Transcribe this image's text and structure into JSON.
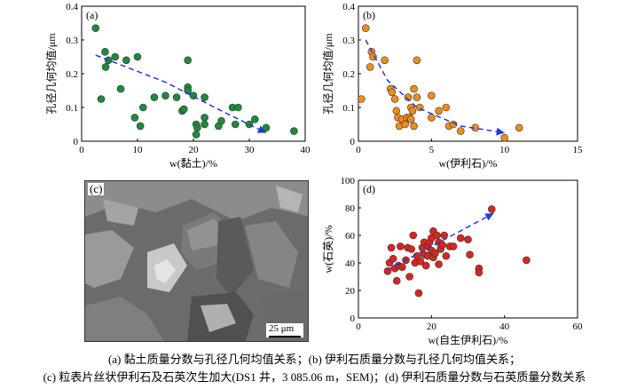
{
  "chart_data": [
    {
      "type": "scatter",
      "panel_label": "(a)",
      "xlabel": "w(黏土)/%",
      "ylabel": "孔径几何均值/μm",
      "xlim": [
        0,
        40
      ],
      "ylim": [
        0,
        0.4
      ],
      "xticks": [
        "0",
        "10",
        "20",
        "30",
        "40"
      ],
      "yticks": [
        "0",
        "0.1",
        "0.2",
        "0.3",
        "0.4"
      ],
      "marker_color": "#1f8a3a",
      "trend_color": "#1e3adb",
      "points": [
        [
          2.5,
          0.335
        ],
        [
          3.5,
          0.125
        ],
        [
          4.2,
          0.265
        ],
        [
          4.3,
          0.22
        ],
        [
          4.8,
          0.24
        ],
        [
          6,
          0.25
        ],
        [
          7,
          0.155
        ],
        [
          8,
          0.24
        ],
        [
          9.5,
          0.07
        ],
        [
          10,
          0.25
        ],
        [
          10.5,
          0.045
        ],
        [
          11,
          0.1
        ],
        [
          13,
          0.13
        ],
        [
          15,
          0.135
        ],
        [
          17,
          0.13
        ],
        [
          18,
          0.09
        ],
        [
          18.3,
          0.095
        ],
        [
          19,
          0.16
        ],
        [
          19,
          0.15
        ],
        [
          19,
          0.24
        ],
        [
          20,
          0.135
        ],
        [
          20.5,
          0.05
        ],
        [
          20.5,
          0.02
        ],
        [
          20.7,
          0.04
        ],
        [
          22,
          0.07
        ],
        [
          22,
          0.05
        ],
        [
          22,
          0.13
        ],
        [
          24.5,
          0.045
        ],
        [
          25,
          0.06
        ],
        [
          27,
          0.1
        ],
        [
          27.5,
          0.05
        ],
        [
          28,
          0.1
        ],
        [
          30,
          0.05
        ],
        [
          31,
          0.065
        ],
        [
          33,
          0.04
        ],
        [
          38,
          0.03
        ]
      ],
      "trend": [
        [
          2.5,
          0.255
        ],
        [
          15,
          0.175
        ],
        [
          25,
          0.09
        ],
        [
          33,
          0.025
        ]
      ]
    },
    {
      "type": "scatter",
      "panel_label": "(b)",
      "xlabel": "w(伊利石)/%",
      "ylabel": "孔径几何均值/μm",
      "xlim": [
        0,
        15
      ],
      "ylim": [
        0,
        0.4
      ],
      "xticks": [
        "0",
        "5",
        "10",
        "15"
      ],
      "yticks": [
        "0",
        "0.1",
        "0.2",
        "0.3",
        "0.4"
      ],
      "marker_color": "#f08c1e",
      "trend_color": "#1e3adb",
      "points": [
        [
          0.2,
          0.125
        ],
        [
          0.5,
          0.335
        ],
        [
          0.8,
          0.22
        ],
        [
          0.9,
          0.265
        ],
        [
          1,
          0.25
        ],
        [
          1.8,
          0.24
        ],
        [
          2.2,
          0.155
        ],
        [
          2.3,
          0.145
        ],
        [
          2.5,
          0.125
        ],
        [
          2.6,
          0.09
        ],
        [
          2.7,
          0.07
        ],
        [
          2.8,
          0.045
        ],
        [
          3,
          0.065
        ],
        [
          3.2,
          0.05
        ],
        [
          3.3,
          0.07
        ],
        [
          3.4,
          0.13
        ],
        [
          3.5,
          0.07
        ],
        [
          3.6,
          0.065
        ],
        [
          3.6,
          0.1
        ],
        [
          3.7,
          0.09
        ],
        [
          3.8,
          0.045
        ],
        [
          3.8,
          0.155
        ],
        [
          4,
          0.24
        ],
        [
          4,
          0.13
        ],
        [
          4.2,
          0.1
        ],
        [
          5,
          0.07
        ],
        [
          5,
          0.135
        ],
        [
          5.5,
          0.09
        ],
        [
          6,
          0.1
        ],
        [
          6.2,
          0.045
        ],
        [
          6.5,
          0.05
        ],
        [
          7,
          0.03
        ],
        [
          8,
          0.04
        ],
        [
          10,
          0.01
        ],
        [
          11,
          0.04
        ]
      ],
      "trend": [
        [
          0.5,
          0.3
        ],
        [
          2,
          0.18
        ],
        [
          4,
          0.1
        ],
        [
          7,
          0.045
        ],
        [
          10,
          0.025
        ]
      ]
    },
    {
      "type": "scatter",
      "panel_label": "(d)",
      "xlabel": "w(自生伊利石)/%",
      "ylabel": "w(石英)/%",
      "xlim": [
        0,
        60
      ],
      "ylim": [
        0,
        100
      ],
      "xticks": [
        "0",
        "20",
        "40",
        "60"
      ],
      "yticks": [
        "0",
        "20",
        "40",
        "60",
        "80",
        "100"
      ],
      "marker_color": "#d8261f",
      "trend_color": "#1e3adb",
      "points": [
        [
          8,
          34
        ],
        [
          8.5,
          40
        ],
        [
          9,
          51
        ],
        [
          9.5,
          43
        ],
        [
          10,
          36
        ],
        [
          10.5,
          27
        ],
        [
          11,
          38
        ],
        [
          11.5,
          52
        ],
        [
          12,
          37
        ],
        [
          13,
          42
        ],
        [
          13.5,
          51
        ],
        [
          14,
          30
        ],
        [
          14.5,
          50
        ],
        [
          15,
          60
        ],
        [
          15.5,
          40
        ],
        [
          16,
          45
        ],
        [
          16.5,
          18
        ],
        [
          17,
          41
        ],
        [
          17.5,
          51
        ],
        [
          18,
          55
        ],
        [
          18,
          46
        ],
        [
          18.5,
          38
        ],
        [
          19,
          45
        ],
        [
          19,
          52
        ],
        [
          19.5,
          55
        ],
        [
          20,
          58
        ],
        [
          20,
          49
        ],
        [
          20.5,
          63
        ],
        [
          20.5,
          44
        ],
        [
          21,
          47
        ],
        [
          21.5,
          60
        ],
        [
          22,
          55
        ],
        [
          22,
          39
        ],
        [
          22.5,
          50
        ],
        [
          23,
          53
        ],
        [
          23.5,
          60
        ],
        [
          24,
          45
        ],
        [
          25,
          52
        ],
        [
          26,
          52
        ],
        [
          28,
          58
        ],
        [
          30,
          57
        ],
        [
          30.5,
          46
        ],
        [
          33,
          36
        ],
        [
          33,
          33
        ],
        [
          36.5,
          79
        ],
        [
          46,
          42
        ]
      ],
      "trend": [
        [
          8,
          35
        ],
        [
          37,
          76
        ]
      ]
    }
  ],
  "sem_image": {
    "panel_label": "(c)",
    "scale_label": "25 μm"
  },
  "captions": {
    "line1": "(a)  黏土质量分数与孔径几何均值关系；(b)  伊利石质量分数与孔径几何均值关系；",
    "line2": "(c)  粒表片丝状伊利石及石英次生加大(DS1 井，3 085.06 m，SEM)；(d)  伊利石质量分数与石英质量分数关系"
  }
}
